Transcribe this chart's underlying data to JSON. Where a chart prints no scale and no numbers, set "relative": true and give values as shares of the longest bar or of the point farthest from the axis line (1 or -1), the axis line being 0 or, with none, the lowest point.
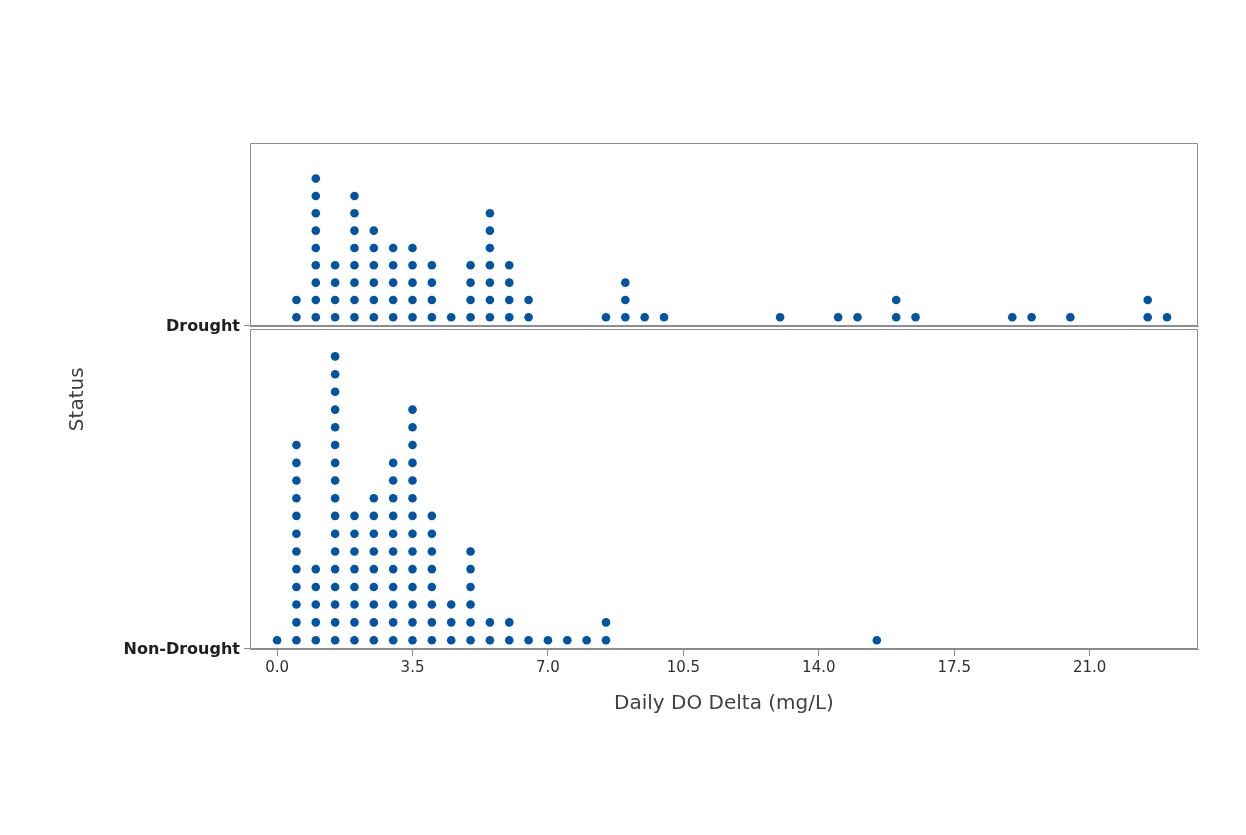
{
  "chart_data": [
    {
      "type": "scatter",
      "relative": true,
      "legend": false,
      "annotations": [
        "Drought"
      ],
      "tick_labels": false,
      "marker": "circle",
      "xlim": [
        -0.7,
        23.8
      ],
      "series": [
        {
          "color": "#0054a6",
          "x": [
            0.5,
            0.5,
            1,
            1,
            1,
            1,
            1,
            1,
            1,
            1,
            1,
            1.5,
            1.5,
            1.5,
            1.5,
            2,
            2,
            2,
            2,
            2,
            2,
            2,
            2,
            2.5,
            2.5,
            2.5,
            2.5,
            2.5,
            2.5,
            3,
            3,
            3,
            3,
            3,
            3.5,
            3.5,
            3.5,
            3.5,
            3.5,
            4,
            4,
            4,
            4,
            4.5,
            5,
            5,
            5,
            5,
            5.5,
            5.5,
            5.5,
            5.5,
            5.5,
            5.5,
            5.5,
            6,
            6,
            6,
            6,
            6.5,
            6.5,
            8.5,
            9,
            9,
            9,
            9.5,
            10,
            13,
            14.5,
            15,
            16,
            16,
            16.5,
            19,
            19.5,
            20.5,
            22.5,
            22.5,
            23
          ],
          "values": [
            0.059,
            0.176,
            0.059,
            0.176,
            0.294,
            0.412,
            0.529,
            0.647,
            0.765,
            0.882,
            1,
            0.059,
            0.176,
            0.294,
            0.412,
            0.059,
            0.176,
            0.294,
            0.412,
            0.529,
            0.647,
            0.765,
            0.882,
            0.059,
            0.176,
            0.294,
            0.412,
            0.529,
            0.647,
            0.059,
            0.176,
            0.294,
            0.412,
            0.529,
            0.059,
            0.176,
            0.294,
            0.412,
            0.529,
            0.059,
            0.176,
            0.294,
            0.412,
            0.059,
            0.059,
            0.176,
            0.294,
            0.412,
            0.059,
            0.176,
            0.294,
            0.412,
            0.529,
            0.647,
            0.765,
            0.059,
            0.176,
            0.294,
            0.412,
            0.059,
            0.176,
            0.059,
            0.059,
            0.176,
            0.294,
            0.059,
            0.059,
            0.059,
            0.059,
            0.059,
            0.059,
            0.176,
            0.059,
            0.059,
            0.059,
            0.059,
            0.059,
            0.176,
            0.059
          ]
        }
      ]
    },
    {
      "type": "scatter",
      "relative": true,
      "legend": false,
      "annotations": [
        "Non-Drought"
      ],
      "tick_labels": "x",
      "marker": "circle",
      "xlabel": "Daily DO Delta (mg/L)",
      "ylabel": "Status",
      "xlim": [
        -0.7,
        23.8
      ],
      "xticks": [
        {
          "value": 0,
          "label": "0.0"
        },
        {
          "value": 3.5,
          "label": "3.5"
        },
        {
          "value": 7,
          "label": "7.0"
        },
        {
          "value": 10.5,
          "label": "10.5"
        },
        {
          "value": 14,
          "label": "14.0"
        },
        {
          "value": 17.5,
          "label": "17.5"
        },
        {
          "value": 21,
          "label": "21.0"
        }
      ],
      "series": [
        {
          "color": "#0054a6",
          "x": [
            0,
            0.5,
            0.5,
            0.5,
            0.5,
            0.5,
            0.5,
            0.5,
            0.5,
            0.5,
            0.5,
            0.5,
            0.5,
            1,
            1,
            1,
            1,
            1,
            1.5,
            1.5,
            1.5,
            1.5,
            1.5,
            1.5,
            1.5,
            1.5,
            1.5,
            1.5,
            1.5,
            1.5,
            1.5,
            1.5,
            1.5,
            1.5,
            1.5,
            2,
            2,
            2,
            2,
            2,
            2,
            2,
            2,
            2.5,
            2.5,
            2.5,
            2.5,
            2.5,
            2.5,
            2.5,
            2.5,
            2.5,
            3,
            3,
            3,
            3,
            3,
            3,
            3,
            3,
            3,
            3,
            3,
            3.5,
            3.5,
            3.5,
            3.5,
            3.5,
            3.5,
            3.5,
            3.5,
            3.5,
            3.5,
            3.5,
            3.5,
            3.5,
            3.5,
            4,
            4,
            4,
            4,
            4,
            4,
            4,
            4,
            4.5,
            4.5,
            4.5,
            5,
            5,
            5,
            5,
            5,
            5,
            5.5,
            5.5,
            6,
            6,
            6.5,
            7,
            7.5,
            8,
            8.5,
            8.5,
            15.5
          ],
          "values": [
            0.03,
            0.03,
            0.091,
            0.152,
            0.212,
            0.273,
            0.333,
            0.394,
            0.455,
            0.515,
            0.576,
            0.636,
            0.697,
            0.03,
            0.091,
            0.152,
            0.212,
            0.273,
            0.03,
            0.091,
            0.152,
            0.212,
            0.273,
            0.333,
            0.394,
            0.455,
            0.515,
            0.576,
            0.636,
            0.697,
            0.758,
            0.818,
            0.879,
            0.939,
            1,
            0.03,
            0.091,
            0.152,
            0.212,
            0.273,
            0.333,
            0.394,
            0.455,
            0.03,
            0.091,
            0.152,
            0.212,
            0.273,
            0.333,
            0.394,
            0.455,
            0.515,
            0.03,
            0.091,
            0.152,
            0.212,
            0.273,
            0.333,
            0.394,
            0.455,
            0.515,
            0.576,
            0.636,
            0.03,
            0.091,
            0.152,
            0.212,
            0.273,
            0.333,
            0.394,
            0.455,
            0.515,
            0.576,
            0.636,
            0.697,
            0.758,
            0.818,
            0.03,
            0.091,
            0.152,
            0.212,
            0.273,
            0.333,
            0.394,
            0.455,
            0.03,
            0.091,
            0.152,
            0.03,
            0.091,
            0.152,
            0.212,
            0.273,
            0.333,
            0.03,
            0.091,
            0.03,
            0.091,
            0.03,
            0.03,
            0.03,
            0.03,
            0.03,
            0.091,
            0.03
          ]
        }
      ]
    }
  ]
}
